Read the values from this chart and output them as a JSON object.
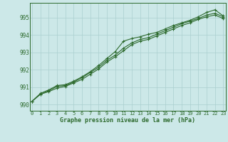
{
  "hours": [
    0,
    1,
    2,
    3,
    4,
    5,
    6,
    7,
    8,
    9,
    10,
    11,
    12,
    13,
    14,
    15,
    16,
    17,
    18,
    19,
    20,
    21,
    22,
    23
  ],
  "line_mean": [
    990.2,
    990.6,
    990.8,
    991.05,
    991.1,
    991.3,
    991.55,
    991.85,
    992.15,
    992.55,
    992.85,
    993.25,
    993.55,
    993.75,
    993.85,
    994.05,
    994.25,
    994.45,
    994.65,
    994.8,
    994.95,
    995.15,
    995.25,
    995.05
  ],
  "line_max": [
    990.2,
    990.65,
    990.85,
    991.1,
    991.15,
    991.35,
    991.6,
    991.9,
    992.25,
    992.65,
    993.05,
    993.65,
    993.8,
    993.9,
    994.05,
    994.15,
    994.35,
    994.55,
    994.7,
    994.85,
    995.05,
    995.3,
    995.45,
    995.1
  ],
  "line_min": [
    990.2,
    990.6,
    990.75,
    990.95,
    991.05,
    991.25,
    991.45,
    991.75,
    992.05,
    992.45,
    992.75,
    993.1,
    993.45,
    993.65,
    993.75,
    993.95,
    994.15,
    994.35,
    994.55,
    994.7,
    994.9,
    995.05,
    995.15,
    994.95
  ],
  "line_color": "#2d6a2d",
  "bg_color": "#cce8e8",
  "grid_color": "#aacfcf",
  "title": "Graphe pression niveau de la mer (hPa)",
  "ylabel_values": [
    990,
    991,
    992,
    993,
    994,
    995
  ],
  "ylim": [
    989.65,
    995.85
  ],
  "xlim": [
    -0.3,
    23.3
  ],
  "marker": "+"
}
